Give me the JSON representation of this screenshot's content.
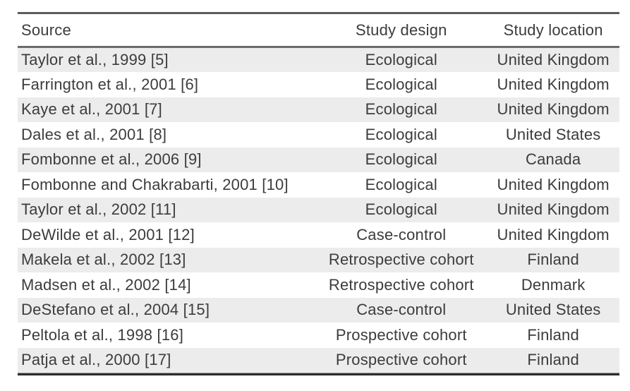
{
  "table": {
    "columns": [
      {
        "key": "source",
        "label": "Source"
      },
      {
        "key": "design",
        "label": "Study design"
      },
      {
        "key": "location",
        "label": "Study location"
      }
    ],
    "rows": [
      {
        "source": "Taylor et al., 1999 [5]",
        "design": "Ecological",
        "location": "United Kingdom"
      },
      {
        "source": "Farrington et al., 2001 [6]",
        "design": "Ecological",
        "location": "United Kingdom"
      },
      {
        "source": "Kaye et al., 2001 [7]",
        "design": "Ecological",
        "location": "United Kingdom"
      },
      {
        "source": "Dales et al., 2001 [8]",
        "design": "Ecological",
        "location": "United States"
      },
      {
        "source": "Fombonne et al., 2006 [9]",
        "design": "Ecological",
        "location": "Canada"
      },
      {
        "source": "Fombonne and Chakrabarti, 2001 [10]",
        "design": "Ecological",
        "location": "United Kingdom"
      },
      {
        "source": "Taylor et al., 2002 [11]",
        "design": "Ecological",
        "location": "United Kingdom"
      },
      {
        "source": "DeWilde et al., 2001 [12]",
        "design": "Case-control",
        "location": "United Kingdom"
      },
      {
        "source": "Makela et al., 2002 [13]",
        "design": "Retrospective cohort",
        "location": "Finland"
      },
      {
        "source": "Madsen et al., 2002 [14]",
        "design": "Retrospective cohort",
        "location": "Denmark"
      },
      {
        "source": "DeStefano et al., 2004 [15]",
        "design": "Case-control",
        "location": "United States"
      },
      {
        "source": "Peltola et al., 1998 [16]",
        "design": "Prospective cohort",
        "location": "Finland"
      },
      {
        "source": "Patja et al., 2000 [17]",
        "design": "Prospective cohort",
        "location": "Finland"
      }
    ],
    "colors": {
      "stripe": "#ececec",
      "text": "#3c3c3c",
      "rule_top": "#5c5c5c",
      "rule_header": "#6b6b6b",
      "rule_bottom_dark": "#2e2e2e",
      "rule_bottom_light": "#9a9a9a",
      "background": "#ffffff"
    }
  }
}
